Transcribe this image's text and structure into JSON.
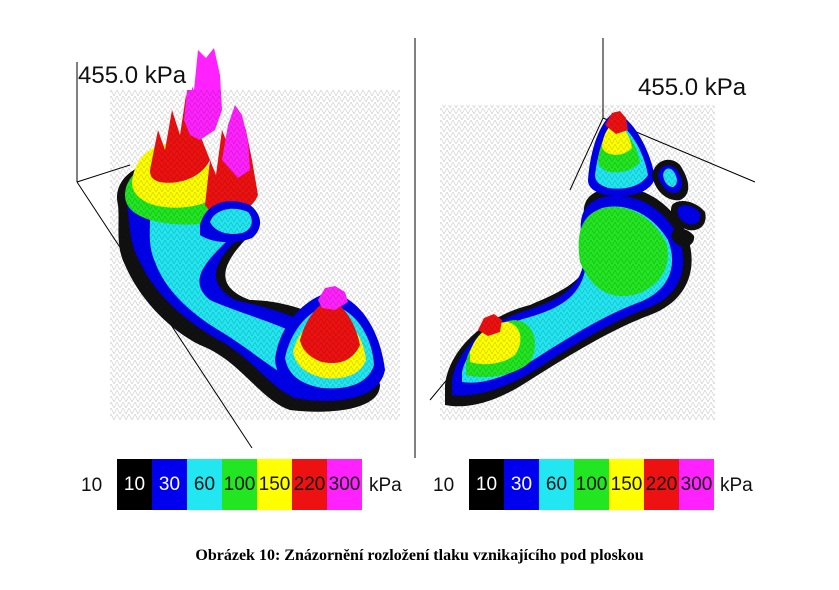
{
  "figure": {
    "left_panel": {
      "peak_label": "455.0 kPa"
    },
    "right_panel": {
      "peak_label": "455.0 kPa"
    },
    "colorbar": {
      "min_label": "10",
      "unit": "kPa",
      "levels": [
        {
          "label": "10",
          "color": "#000000"
        },
        {
          "label": "30",
          "color": "#0000ee"
        },
        {
          "label": "60",
          "color": "#22e6f0"
        },
        {
          "label": "100",
          "color": "#22e622"
        },
        {
          "label": "150",
          "color": "#ffff00"
        },
        {
          "label": "220",
          "color": "#ee1111"
        },
        {
          "label": "300",
          "color": "#ff22ff"
        }
      ]
    }
  },
  "caption": "Obrázek 10: Znázornění rozložení tlaku vznikajícího pod ploskou"
}
